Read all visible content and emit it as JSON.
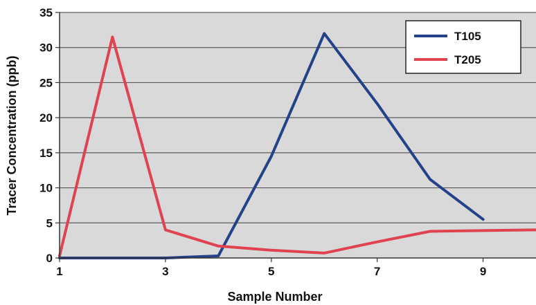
{
  "chart_data": {
    "type": "line",
    "title": "",
    "xlabel": "Sample Number",
    "ylabel": "Tracer Concentration (ppb)",
    "xlim": [
      1,
      10
    ],
    "ylim": [
      0,
      35
    ],
    "xticks": [
      1,
      3,
      5,
      7,
      9
    ],
    "yticks": [
      0,
      5,
      10,
      15,
      20,
      25,
      30,
      35
    ],
    "grid": "horizontal",
    "legend_position": "top-right",
    "series": [
      {
        "name": "T105",
        "color": "#24418a",
        "points": [
          {
            "x": 1,
            "y": 0
          },
          {
            "x": 2,
            "y": 0
          },
          {
            "x": 3,
            "y": 0
          },
          {
            "x": 4,
            "y": 0.3
          },
          {
            "x": 5,
            "y": 14.5
          },
          {
            "x": 6,
            "y": 32
          },
          {
            "x": 7,
            "y": 22
          },
          {
            "x": 8,
            "y": 11.2
          },
          {
            "x": 9,
            "y": 5.5
          }
        ]
      },
      {
        "name": "T205",
        "color": "#e0424f",
        "points": [
          {
            "x": 1,
            "y": 0.3
          },
          {
            "x": 2,
            "y": 31.5
          },
          {
            "x": 3,
            "y": 4
          },
          {
            "x": 4,
            "y": 1.7
          },
          {
            "x": 5,
            "y": 1.1
          },
          {
            "x": 6,
            "y": 0.7
          },
          {
            "x": 7,
            "y": 2.3
          },
          {
            "x": 8,
            "y": 3.8
          },
          {
            "x": 9,
            "y": 3.9
          },
          {
            "x": 10,
            "y": 4
          }
        ]
      }
    ]
  }
}
